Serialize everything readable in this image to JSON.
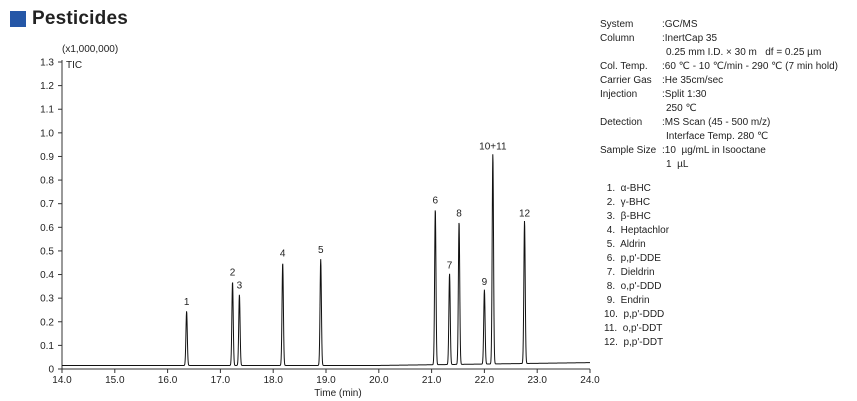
{
  "title": "Pesticides",
  "accent_color": "#2557a7",
  "chart_data": {
    "type": "line",
    "title": "",
    "xlabel": "Time (min)",
    "ylabel": "",
    "y_unit_label": "(x1,000,000)",
    "series_label": "TIC",
    "xlim": [
      14.0,
      24.0
    ],
    "ylim": [
      0,
      1.3
    ],
    "xticks": [
      "14.0",
      "15.0",
      "16.0",
      "17.0",
      "18.0",
      "19.0",
      "20.0",
      "21.0",
      "22.0",
      "23.0",
      "24.0"
    ],
    "yticks": [
      "0",
      "0.1",
      "0.2",
      "0.3",
      "0.4",
      "0.5",
      "0.6",
      "0.7",
      "0.8",
      "0.9",
      "1.0",
      "1.1",
      "1.2",
      "1.3"
    ],
    "grid": false,
    "baseline": 0.015,
    "peaks": [
      {
        "label": "1",
        "x": 16.36,
        "y": 0.245
      },
      {
        "label": "2",
        "x": 17.23,
        "y": 0.37
      },
      {
        "label": "3",
        "x": 17.36,
        "y": 0.315
      },
      {
        "label": "4",
        "x": 18.18,
        "y": 0.45
      },
      {
        "label": "5",
        "x": 18.9,
        "y": 0.465
      },
      {
        "label": "6",
        "x": 21.07,
        "y": 0.675
      },
      {
        "label": "7",
        "x": 21.34,
        "y": 0.4
      },
      {
        "label": "8",
        "x": 21.52,
        "y": 0.62
      },
      {
        "label": "9",
        "x": 22.0,
        "y": 0.33
      },
      {
        "label": "10+11",
        "x": 22.16,
        "y": 0.905
      },
      {
        "label": "12",
        "x": 22.76,
        "y": 0.62
      }
    ]
  },
  "conditions": {
    "system": {
      "label": "System",
      "value": ":GC/MS"
    },
    "column": {
      "label": "Column",
      "value": ":InertCap 35",
      "cont": "0.25 mm I.D. × 30 m   df = 0.25 µm"
    },
    "col_temp": {
      "label": "Col. Temp.",
      "value": ":60 ℃ - 10 ℃/min - 290 ℃ (7 min hold)"
    },
    "carrier": {
      "label": "Carrier Gas",
      "value": ":He 35cm/sec"
    },
    "injection": {
      "label": "Injection",
      "value": ":Split 1:30",
      "cont": "250 ℃"
    },
    "detection": {
      "label": "Detection",
      "value": ":MS Scan (45 - 500 m/z)",
      "cont": "Interface Temp. 280 ℃"
    },
    "sample": {
      "label": "Sample Size",
      "value": ":10  µg/mL in Isooctane",
      "cont": "1  µL"
    }
  },
  "peak_list": [
    " 1.  α-BHC",
    " 2.  γ-BHC",
    " 3.  β-BHC",
    " 4.  Heptachlor",
    " 5.  Aldrin",
    " 6.  p,p'-DDE",
    " 7.  Dieldrin",
    " 8.  o,p'-DDD",
    " 9.  Endrin",
    "10.  p,p'-DDD",
    "11.  o,p'-DDT",
    "12.  p,p'-DDT"
  ]
}
